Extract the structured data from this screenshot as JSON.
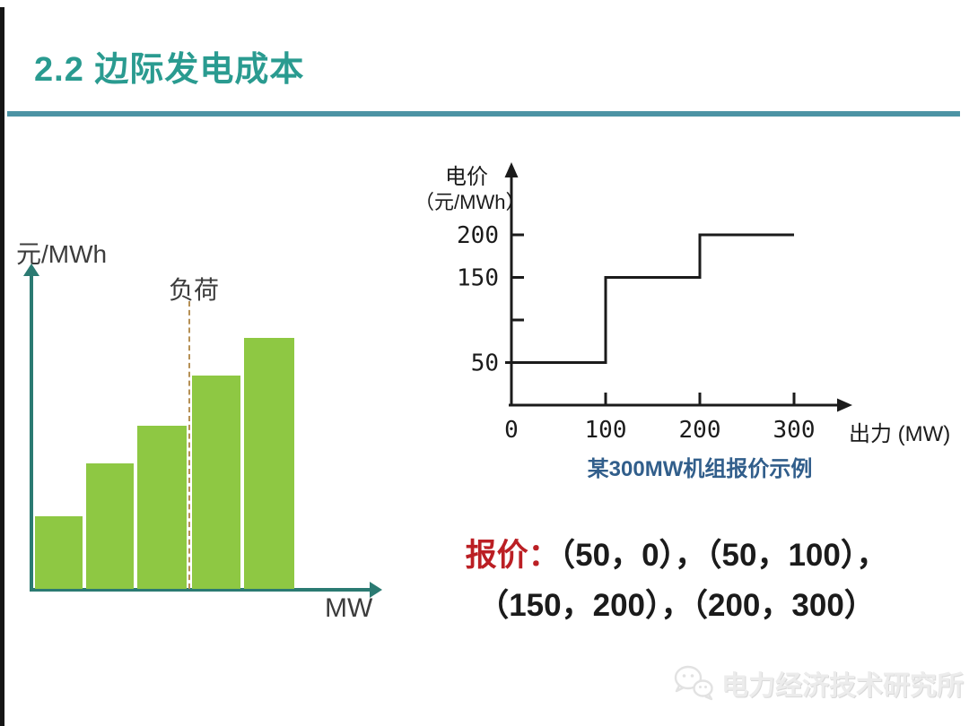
{
  "slide": {
    "title": "2.2 边际发电成本",
    "quote_label": "报价：",
    "quote_line1": "（50，0），（50，100），",
    "quote_line2": "（150，200），（200，300）",
    "watermark": "电力经济技术研究所",
    "watermark_icon": "wechat-bubbles-icon",
    "colors": {
      "title": "#2A9B90",
      "title_rule": "#4C93A4",
      "left_axis": "#2B7A72",
      "bar_green": "#8EC843",
      "load_dash": "#B69055",
      "ink": "#1b1b1b",
      "caption_blue": "#315E8B",
      "quote_red": "#BB1F24",
      "watermark_gray": "#ececec"
    }
  },
  "chart_data": [
    {
      "type": "bar",
      "title": "",
      "ylabel": "元/MWh",
      "xlabel": "MW",
      "categories": [
        "",
        "",
        "",
        "",
        ""
      ],
      "values": [
        29,
        50,
        65,
        85,
        100
      ],
      "ylim": [
        0,
        100
      ],
      "value_note": "no numeric scale shown; values are relative bar heights in % of tallest bar",
      "bar_color": "#8EC843",
      "grid": false,
      "annotation": {
        "label": "负荷",
        "style": "vertical dashed line",
        "position": "at left edge of 4th bar"
      }
    },
    {
      "type": "line",
      "subtype": "step",
      "title": "某300MW机组报价示例",
      "ylabel": "电价（元/MWh）",
      "ylabel_line1": "电价",
      "ylabel_line2": "（元/MWh）",
      "xlabel": "出力 (MW)",
      "x": [
        0,
        100,
        100,
        200,
        200,
        300
      ],
      "y": [
        50,
        50,
        150,
        150,
        200,
        200
      ],
      "segments": [
        {
          "price": 50,
          "from_mw": 0,
          "to_mw": 100
        },
        {
          "price": 150,
          "from_mw": 100,
          "to_mw": 200
        },
        {
          "price": 200,
          "from_mw": 200,
          "to_mw": 300
        }
      ],
      "yticks": [
        50,
        100,
        150,
        200
      ],
      "ytick_labels": [
        "50",
        "",
        "150",
        "200"
      ],
      "xticks": [
        0,
        100,
        200,
        300
      ],
      "xlim": [
        0,
        340
      ],
      "ylim": [
        0,
        250
      ],
      "grid": false,
      "line_color": "#1b1b1b"
    }
  ]
}
